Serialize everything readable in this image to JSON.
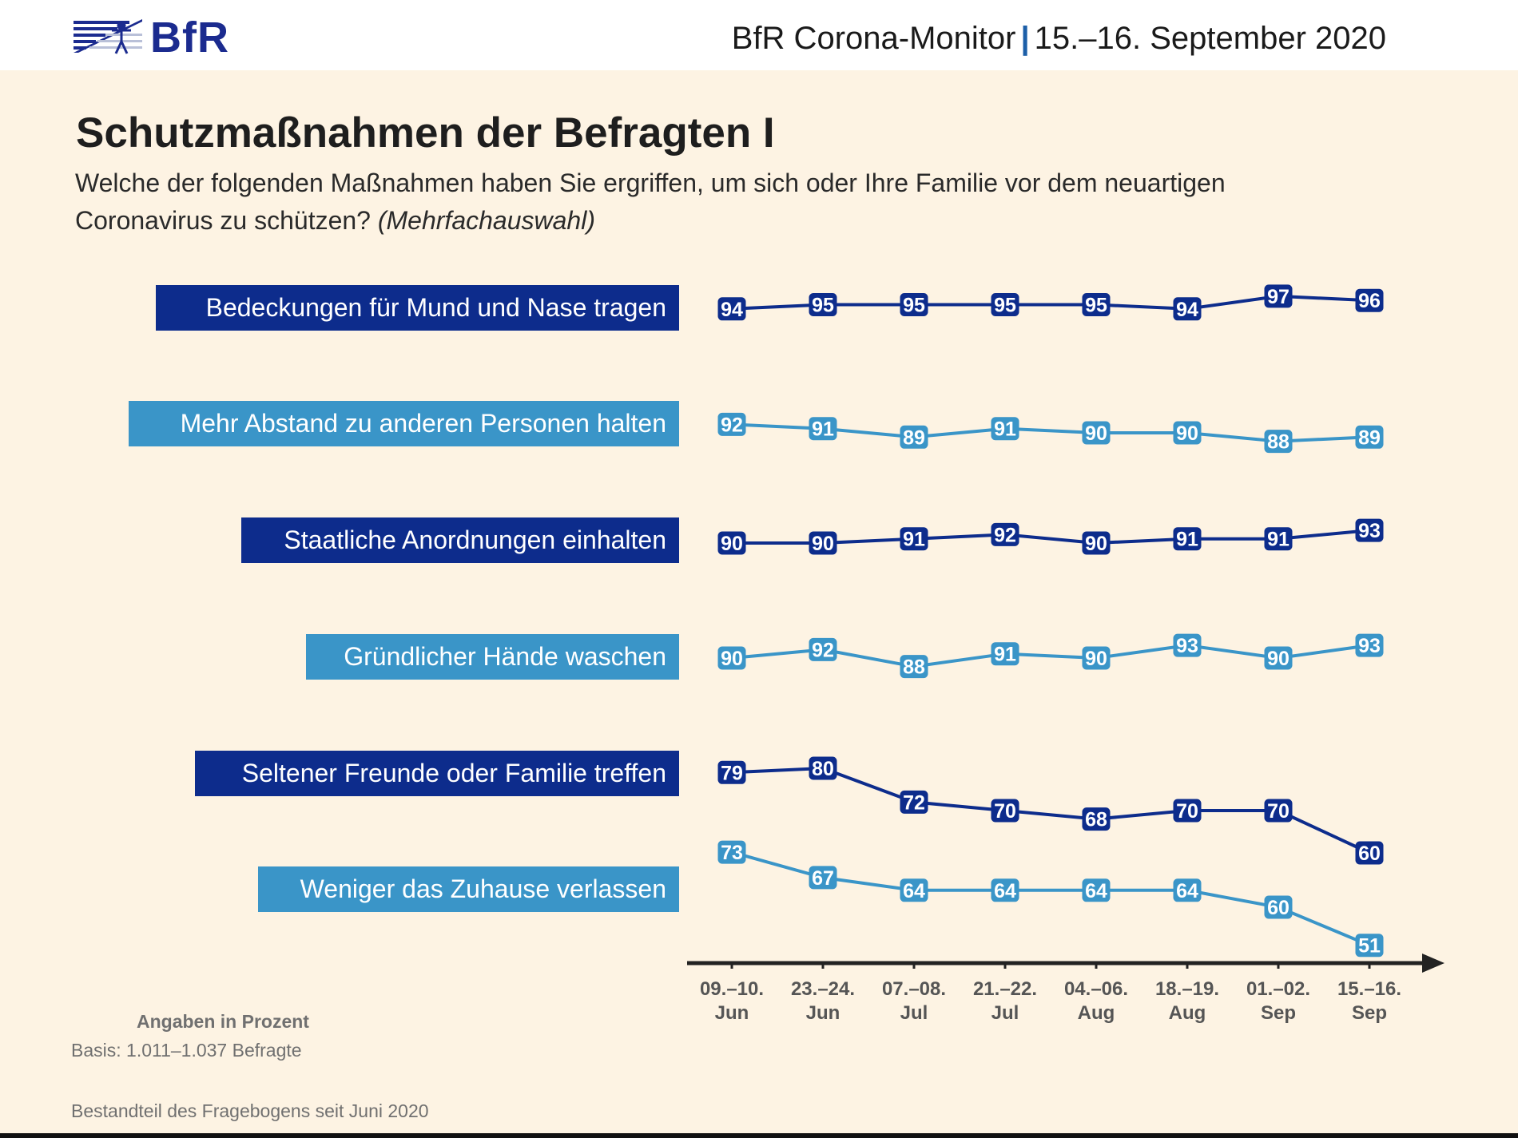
{
  "header": {
    "logo_text": "BfR",
    "title_left": "BfR Corona-Monitor",
    "title_sep": "|",
    "title_right": "15.–16. September 2020"
  },
  "page": {
    "title": "Schutzmaßnahmen der Befragten I",
    "subtitle_line1": "Welche der folgenden Maßnahmen haben Sie ergriffen, um sich oder Ihre Familie vor dem neuartigen",
    "subtitle_line2": "Coronavirus zu schützen?",
    "subtitle_italic": "(Mehrfachauswahl)"
  },
  "footer": {
    "unit_note": "Angaben in Prozent",
    "basis_note": "Basis: 1.011–1.037 Befragte",
    "questionnaire_note": "Bestandteil des Fragebogens seit Juni 2020"
  },
  "colors": {
    "dark_blue": "#0d2c8c",
    "light_blue": "#3a95c8",
    "background": "#fdf3e3"
  },
  "chart_data": {
    "type": "line",
    "title": "Schutzmaßnahmen der Befragten I",
    "xlabel": "",
    "ylabel": "Angaben in Prozent",
    "grid": false,
    "legend": "left-labels",
    "categories": [
      [
        "09.–10.",
        "Jun"
      ],
      [
        "23.–24.",
        "Jun"
      ],
      [
        "07.–08.",
        "Jul"
      ],
      [
        "21.–22.",
        "Jul"
      ],
      [
        "04.–06.",
        "Aug"
      ],
      [
        "18.–19.",
        "Aug"
      ],
      [
        "01.–02.",
        "Sep"
      ],
      [
        "15.–16.",
        "Sep"
      ]
    ],
    "series": [
      {
        "name": "Bedeckungen für Mund und Nase tragen",
        "style": "dark",
        "values": [
          94,
          95,
          95,
          95,
          95,
          94,
          97,
          96
        ]
      },
      {
        "name": "Mehr Abstand zu anderen Personen halten",
        "style": "light",
        "values": [
          92,
          91,
          89,
          91,
          90,
          90,
          88,
          89
        ]
      },
      {
        "name": "Staatliche Anordnungen einhalten",
        "style": "dark",
        "values": [
          90,
          90,
          91,
          92,
          90,
          91,
          91,
          93
        ]
      },
      {
        "name": "Gründlicher Hände waschen",
        "style": "light",
        "values": [
          90,
          92,
          88,
          91,
          90,
          93,
          90,
          93
        ]
      },
      {
        "name": "Seltener Freunde oder Familie treffen",
        "style": "dark",
        "values": [
          79,
          80,
          72,
          70,
          68,
          70,
          70,
          60
        ]
      },
      {
        "name": "Weniger das Zuhause verlassen",
        "style": "light",
        "values": [
          73,
          67,
          64,
          64,
          64,
          64,
          60,
          51
        ]
      }
    ]
  }
}
